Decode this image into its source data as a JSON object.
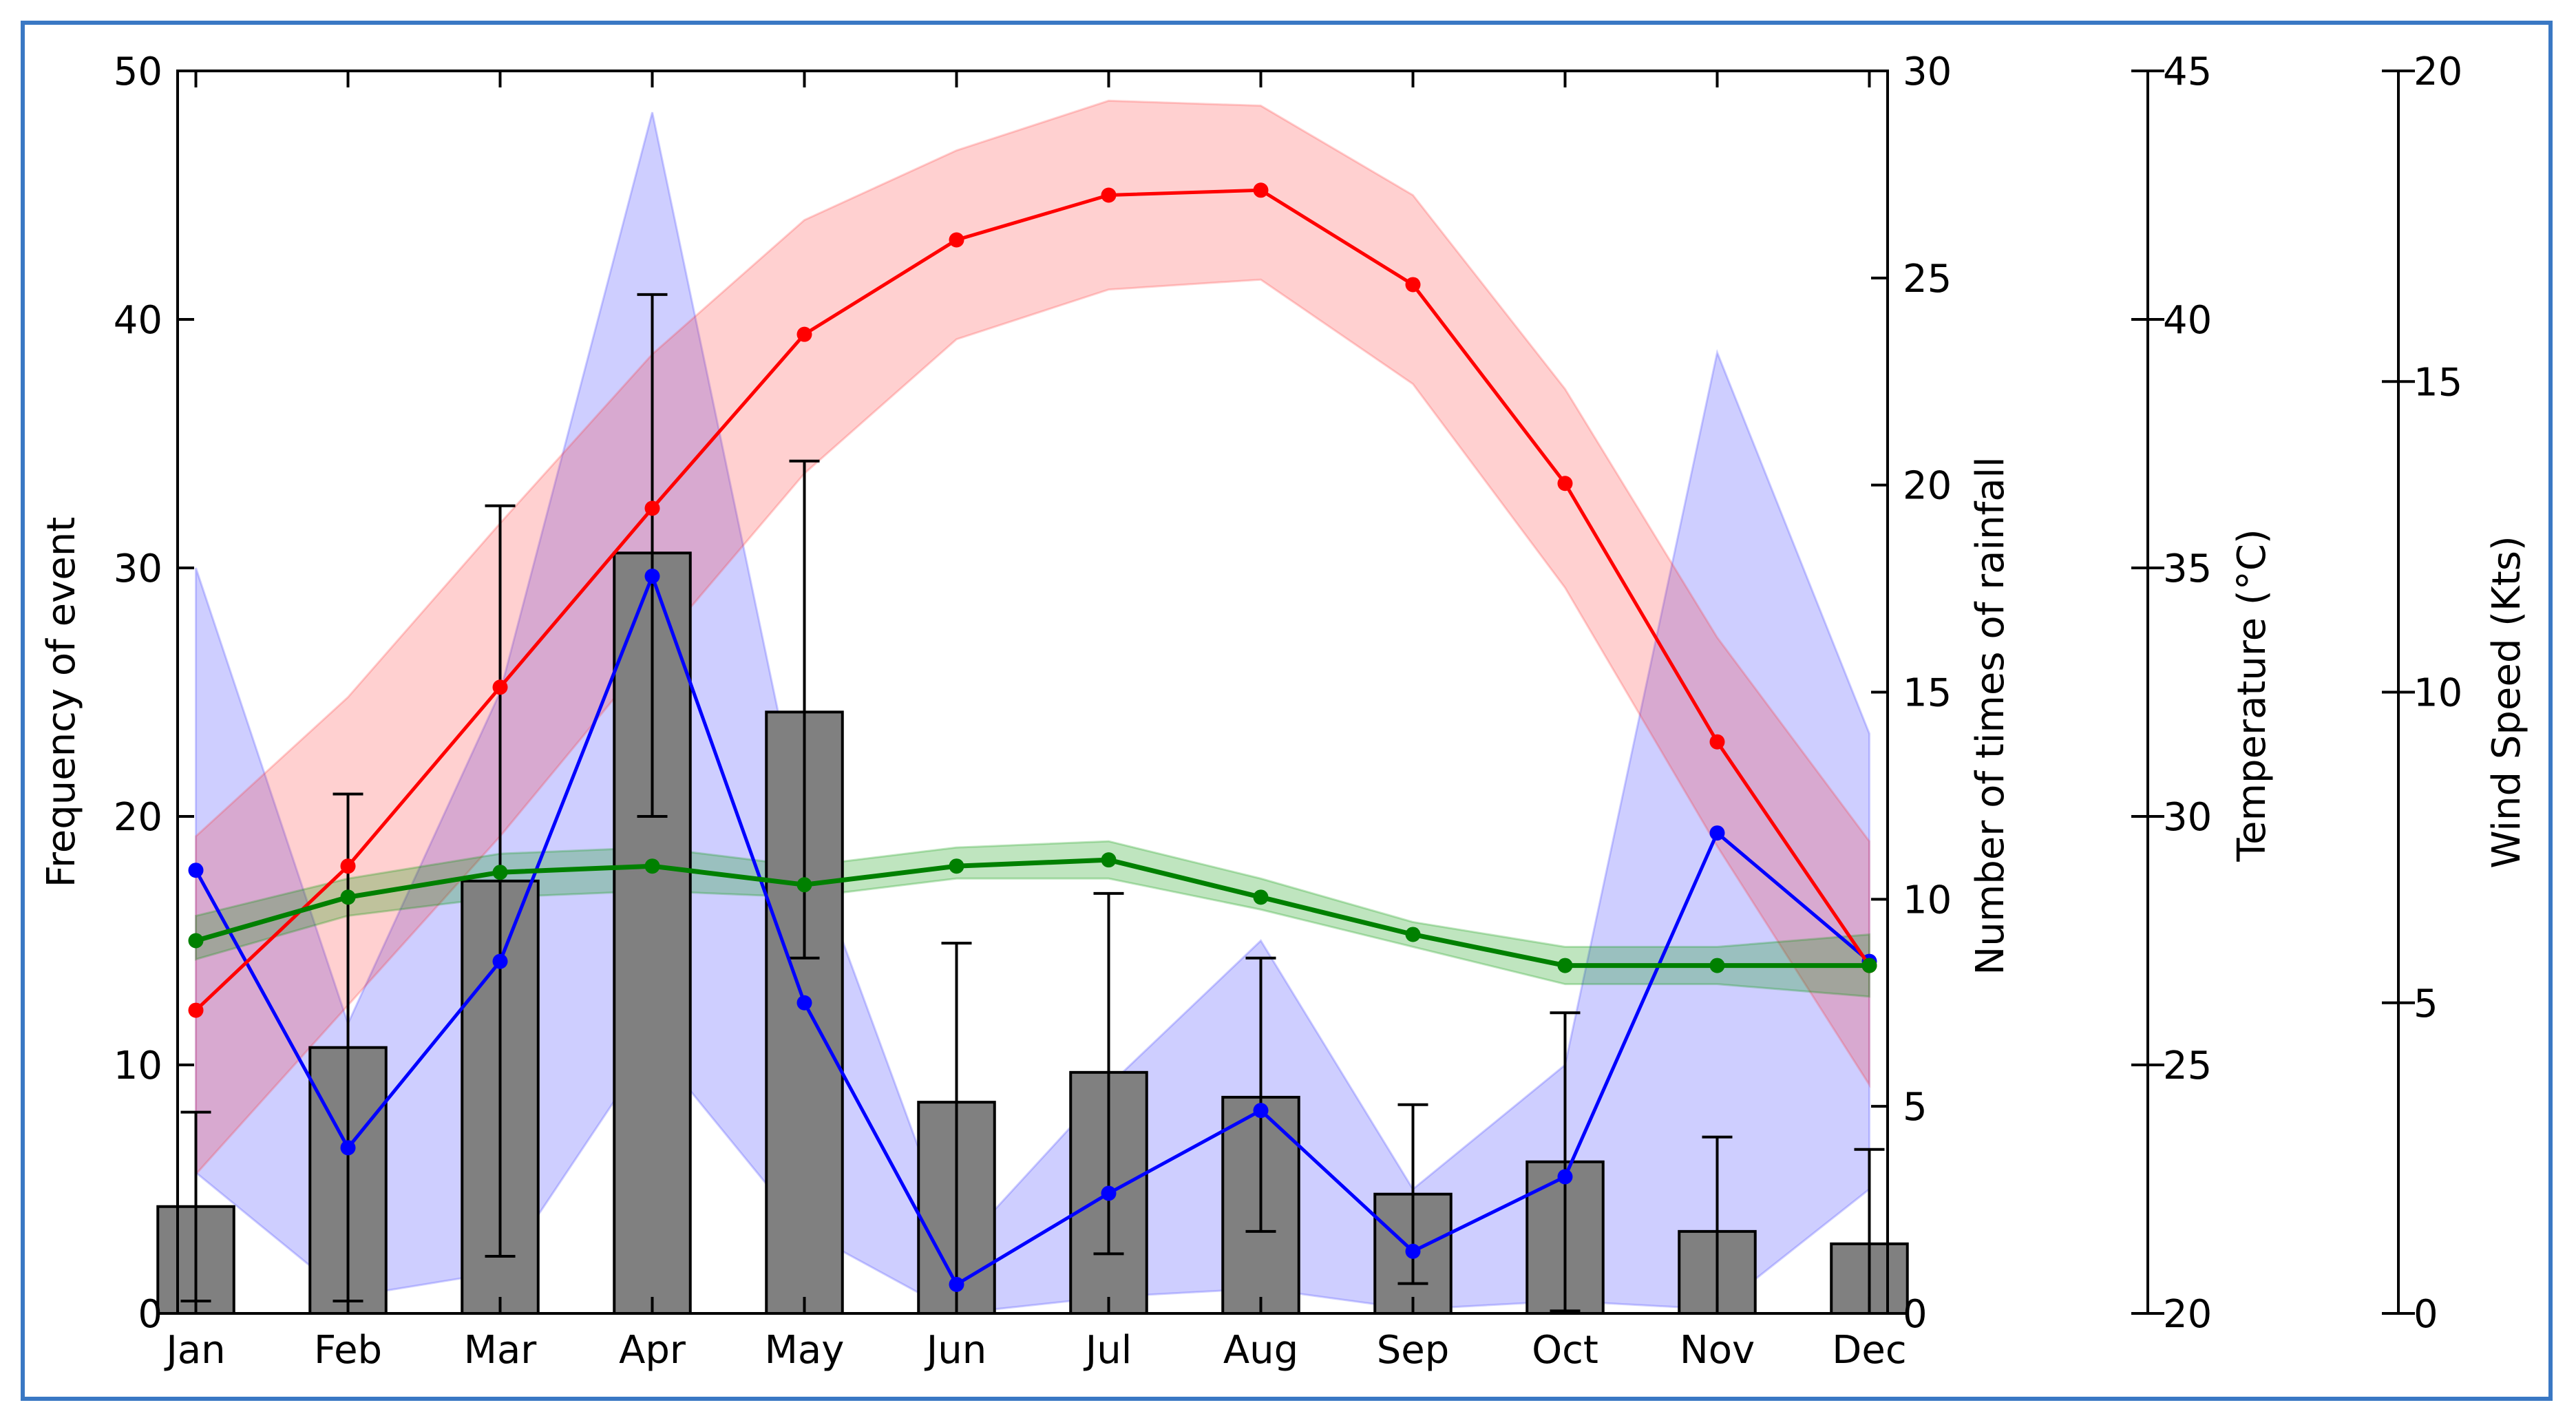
{
  "chart_data": {
    "type": "bar",
    "categories": [
      "Jan",
      "Feb",
      "Mar",
      "Apr",
      "May",
      "Jun",
      "Jul",
      "Aug",
      "Sep",
      "Oct",
      "Nov",
      "Dec"
    ],
    "axes": {
      "left": {
        "label": "Frequency of event",
        "range": [
          0,
          50
        ],
        "ticks": [
          0,
          10,
          20,
          30,
          40,
          50
        ]
      },
      "right1": {
        "label": "Number of times of rainfall",
        "range": [
          0,
          30
        ],
        "ticks": [
          0,
          5,
          10,
          15,
          20,
          25,
          30
        ]
      },
      "right2": {
        "label": "Temperature (°C)",
        "range": [
          20,
          45
        ],
        "ticks": [
          20,
          25,
          30,
          35,
          40,
          45
        ]
      },
      "right3": {
        "label": "Wind Speed (Kts)",
        "range": [
          0,
          20
        ],
        "ticks": [
          0,
          5,
          10,
          15,
          20
        ]
      }
    },
    "series": [
      {
        "name": "Frequency of event",
        "kind": "bar",
        "axis": "left",
        "color": "#808080",
        "values": [
          4.3,
          10.7,
          17.4,
          30.6,
          24.2,
          8.5,
          9.7,
          8.7,
          4.8,
          6.1,
          3.3,
          2.8
        ],
        "err_low": [
          0.5,
          0.5,
          2.3,
          20.0,
          14.3,
          0.0,
          2.4,
          3.3,
          1.2,
          0.1,
          0.0,
          0.0
        ],
        "err_high": [
          8.1,
          20.9,
          32.5,
          41.0,
          34.3,
          14.9,
          16.9,
          14.3,
          8.4,
          12.1,
          7.1,
          6.6
        ]
      },
      {
        "name": "Number of times of rainfall",
        "kind": "line-band",
        "axis": "right1",
        "color": "#0000ff",
        "values": [
          10.7,
          4.0,
          8.5,
          17.8,
          7.5,
          0.7,
          2.9,
          4.9,
          1.5,
          3.3,
          11.6,
          8.5
        ],
        "band_low": [
          3.4,
          0.4,
          1.0,
          6.5,
          2.0,
          0.0,
          0.4,
          0.6,
          0.1,
          0.3,
          0.1,
          3.0
        ],
        "band_high": [
          18.0,
          7.0,
          15.0,
          29.0,
          11.5,
          1.5,
          5.5,
          9.0,
          3.0,
          6.0,
          23.2,
          14.0
        ]
      },
      {
        "name": "Temperature",
        "kind": "line-band",
        "axis": "right2",
        "color": "#ff0000",
        "values": [
          26.1,
          29.0,
          32.6,
          36.2,
          39.7,
          41.6,
          42.5,
          42.6,
          40.7,
          36.7,
          31.5,
          27.0
        ],
        "band_low": [
          22.8,
          26.2,
          29.6,
          33.3,
          36.9,
          39.6,
          40.6,
          40.8,
          38.7,
          34.6,
          29.4,
          24.6
        ],
        "band_high": [
          29.6,
          32.4,
          35.9,
          39.3,
          42.0,
          43.4,
          44.4,
          44.3,
          42.5,
          38.6,
          33.6,
          29.5
        ]
      },
      {
        "name": "Wind Speed",
        "kind": "line-band",
        "axis": "right3",
        "color": "#008000",
        "values": [
          6.0,
          6.7,
          7.1,
          7.2,
          6.9,
          7.2,
          7.3,
          6.7,
          6.1,
          5.6,
          5.6,
          5.6
        ],
        "band_low": [
          5.7,
          6.4,
          6.7,
          6.8,
          6.7,
          7.0,
          7.0,
          6.5,
          5.9,
          5.3,
          5.3,
          5.1
        ],
        "band_high": [
          6.4,
          7.0,
          7.4,
          7.5,
          7.2,
          7.5,
          7.6,
          7.0,
          6.3,
          5.9,
          5.9,
          6.1
        ]
      }
    ]
  }
}
